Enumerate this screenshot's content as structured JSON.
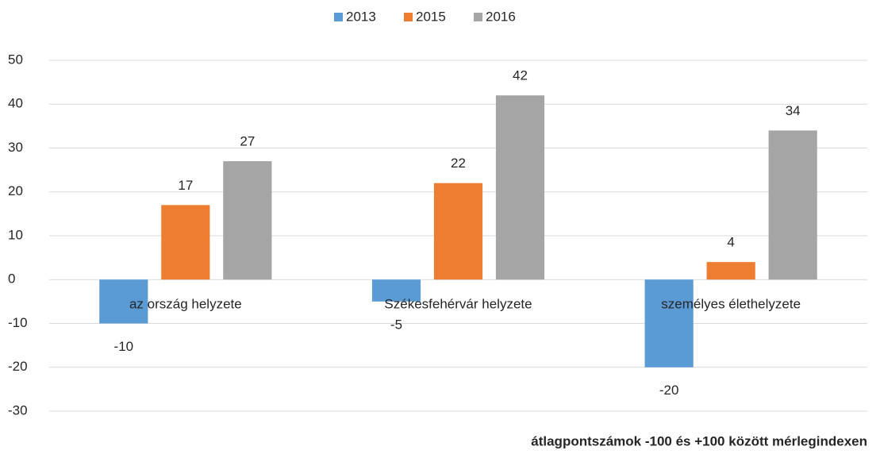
{
  "chart_data": {
    "type": "bar",
    "categories": [
      "az ország helyzete",
      "Székesfehérvár helyzete",
      "személyes élethelyzete"
    ],
    "series": [
      {
        "name": "2013",
        "color": "#5b9bd5",
        "values": [
          -10,
          -5,
          -20
        ]
      },
      {
        "name": "2015",
        "color": "#ed7d31",
        "values": [
          17,
          22,
          4
        ]
      },
      {
        "name": "2016",
        "color": "#a5a5a5",
        "values": [
          27,
          42,
          34
        ]
      }
    ],
    "ylim": [
      -30,
      50
    ],
    "yticks": [
      -30,
      -20,
      -10,
      0,
      10,
      20,
      30,
      40,
      50
    ],
    "grid": true,
    "legend": "top",
    "annotation": "átlagpontszámok -100 és +100 között mérlegindexen"
  }
}
